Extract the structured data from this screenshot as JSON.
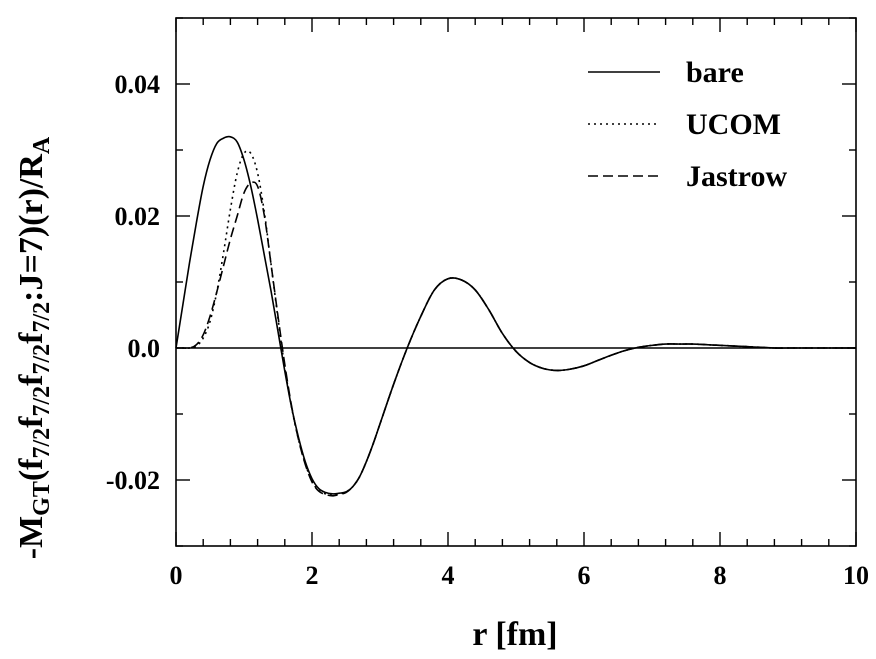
{
  "chart_data": {
    "type": "line",
    "xlabel": "r [fm]",
    "ylabel": {
      "prefix": "-M",
      "sub1": "GT",
      "part1": "(f",
      "sub2": "7/2",
      "part2": "f",
      "sub3": "7/2",
      "part3": "f",
      "sub4": "7/2",
      "part4": "f",
      "sub5": "7/2",
      "part5": ":J=7)(r)/R",
      "sub6": "A"
    },
    "xlim": [
      0,
      10
    ],
    "ylim": [
      -0.03,
      0.05
    ],
    "x_ticks": [
      0,
      2,
      4,
      6,
      8,
      10
    ],
    "x_tick_labels": [
      "0",
      "2",
      "4",
      "6",
      "8",
      "10"
    ],
    "y_ticks": [
      -0.02,
      0.0,
      0.02,
      0.04
    ],
    "y_tick_labels": [
      "-0.02",
      "0.0",
      "0.02",
      "0.04"
    ],
    "zero_line": true,
    "grid": false,
    "legend_position": "top-right",
    "series": [
      {
        "name": "bare",
        "dash": "solid",
        "x": [
          0,
          0.1,
          0.2,
          0.3,
          0.4,
          0.5,
          0.6,
          0.7,
          0.8,
          0.9,
          1.0,
          1.1,
          1.2,
          1.3,
          1.4,
          1.5,
          1.6,
          1.7,
          1.8,
          1.9,
          2.0,
          2.1,
          2.2,
          2.3,
          2.4,
          2.5,
          2.6,
          2.7,
          2.8,
          2.9,
          3.0,
          3.2,
          3.4,
          3.6,
          3.8,
          4.0,
          4.2,
          4.4,
          4.6,
          4.8,
          5.0,
          5.2,
          5.4,
          5.6,
          5.8,
          6.0,
          6.2,
          6.4,
          6.6,
          6.8,
          7.0,
          7.2,
          7.4,
          7.6,
          7.8,
          8.0,
          8.2,
          8.4,
          8.6,
          8.8,
          9.0,
          9.5,
          10.0
        ],
        "y": [
          0.0,
          0.0065,
          0.013,
          0.019,
          0.0245,
          0.0285,
          0.031,
          0.0318,
          0.032,
          0.0312,
          0.0285,
          0.0245,
          0.0195,
          0.014,
          0.0085,
          0.0025,
          -0.0035,
          -0.009,
          -0.0135,
          -0.0172,
          -0.0198,
          -0.0213,
          -0.0219,
          -0.0221,
          -0.022,
          -0.0218,
          -0.021,
          -0.0195,
          -0.0172,
          -0.0145,
          -0.0115,
          -0.0055,
          0.0,
          0.0048,
          0.0088,
          0.0105,
          0.0103,
          0.0088,
          0.0058,
          0.0022,
          -0.0005,
          -0.0022,
          -0.0031,
          -0.0034,
          -0.0032,
          -0.0027,
          -0.0019,
          -0.0011,
          -0.0004,
          0.0001,
          0.0004,
          0.0006,
          0.0006,
          0.0006,
          0.0005,
          0.0004,
          0.0003,
          0.0002,
          0.0001,
          0.0,
          0.0,
          0.0,
          0.0
        ]
      },
      {
        "name": "UCOM",
        "dash": "dotted",
        "x": [
          0,
          0.1,
          0.2,
          0.3,
          0.4,
          0.5,
          0.6,
          0.7,
          0.8,
          0.9,
          1.0,
          1.1,
          1.2,
          1.3,
          1.4,
          1.5,
          1.6,
          1.7,
          1.8,
          1.9,
          2.0,
          2.1,
          2.2,
          2.3,
          2.4,
          2.5,
          2.6,
          2.7,
          2.8,
          2.9,
          3.0,
          3.2,
          3.4,
          3.6,
          3.8,
          4.0,
          4.2,
          4.4,
          4.6,
          4.8,
          5.0,
          5.2,
          5.4,
          5.6,
          5.8,
          6.0,
          6.2,
          6.4,
          6.6,
          6.8,
          7.0,
          7.2,
          7.4,
          7.6,
          7.8,
          8.0,
          8.2,
          8.4,
          8.6,
          8.8,
          9.0,
          9.5,
          10.0
        ],
        "y": [
          0.0,
          0.0,
          0.0,
          0.0003,
          0.0015,
          0.004,
          0.0085,
          0.0145,
          0.021,
          0.0265,
          0.0295,
          0.0295,
          0.0265,
          0.0205,
          0.0125,
          0.0045,
          -0.003,
          -0.009,
          -0.0138,
          -0.0175,
          -0.0202,
          -0.0216,
          -0.0221,
          -0.0223,
          -0.0221,
          -0.0218,
          -0.021,
          -0.0195,
          -0.0172,
          -0.0145,
          -0.0115,
          -0.0055,
          0.0,
          0.0048,
          0.0088,
          0.0105,
          0.0103,
          0.0088,
          0.0058,
          0.0022,
          -0.0005,
          -0.0022,
          -0.0031,
          -0.0034,
          -0.0032,
          -0.0027,
          -0.0019,
          -0.0011,
          -0.0004,
          0.0001,
          0.0004,
          0.0006,
          0.0006,
          0.0006,
          0.0005,
          0.0004,
          0.0003,
          0.0002,
          0.0001,
          0.0,
          0.0,
          0.0,
          0.0
        ]
      },
      {
        "name": "Jastrow",
        "dash": "dashed",
        "x": [
          0,
          0.1,
          0.2,
          0.3,
          0.4,
          0.5,
          0.6,
          0.7,
          0.8,
          0.9,
          1.0,
          1.1,
          1.2,
          1.3,
          1.4,
          1.5,
          1.6,
          1.7,
          1.8,
          1.9,
          2.0,
          2.1,
          2.2,
          2.3,
          2.4,
          2.5,
          2.6,
          2.7,
          2.8,
          2.9,
          3.0,
          3.2,
          3.4,
          3.6,
          3.8,
          4.0,
          4.2,
          4.4,
          4.6,
          4.8,
          5.0,
          5.2,
          5.4,
          5.6,
          5.8,
          6.0,
          6.2,
          6.4,
          6.6,
          6.8,
          7.0,
          7.2,
          7.4,
          7.6,
          7.8,
          8.0,
          8.2,
          8.4,
          8.6,
          8.8,
          9.0,
          9.5,
          10.0
        ],
        "y": [
          0.0,
          0.0,
          0.0,
          0.0005,
          0.002,
          0.0048,
          0.0085,
          0.0125,
          0.0165,
          0.02,
          0.0235,
          0.025,
          0.0245,
          0.02,
          0.0125,
          0.0048,
          -0.0025,
          -0.0088,
          -0.0138,
          -0.0176,
          -0.0203,
          -0.0217,
          -0.0222,
          -0.0224,
          -0.0222,
          -0.0219,
          -0.021,
          -0.0195,
          -0.0172,
          -0.0145,
          -0.0115,
          -0.0055,
          0.0,
          0.0048,
          0.0088,
          0.0105,
          0.0103,
          0.0088,
          0.0058,
          0.0022,
          -0.0005,
          -0.0022,
          -0.0031,
          -0.0034,
          -0.0032,
          -0.0027,
          -0.0019,
          -0.0011,
          -0.0004,
          0.0001,
          0.0004,
          0.0006,
          0.0006,
          0.0006,
          0.0005,
          0.0004,
          0.0003,
          0.0002,
          0.0001,
          0.0,
          0.0,
          0.0,
          0.0
        ]
      }
    ]
  }
}
